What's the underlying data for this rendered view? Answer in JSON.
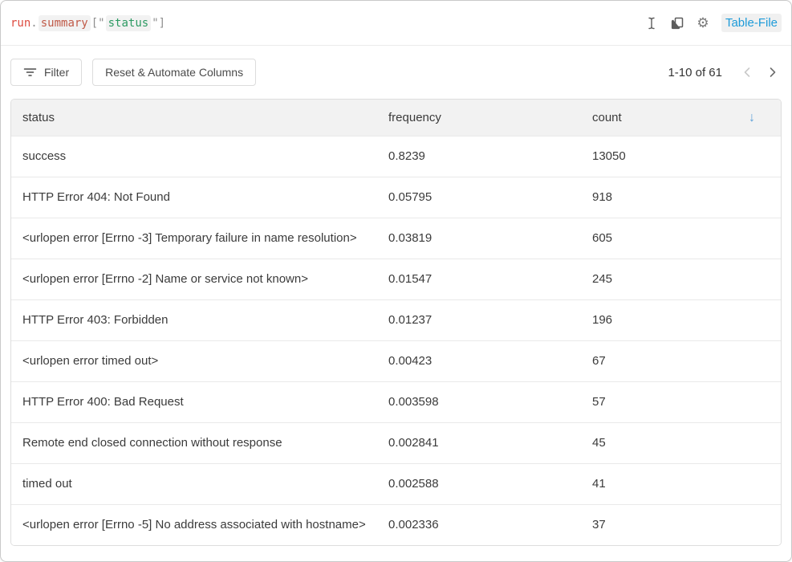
{
  "header": {
    "expression": {
      "tokens": [
        {
          "text": "run",
          "type": "keyword"
        },
        {
          "text": ".",
          "type": "punct"
        },
        {
          "text": "summary",
          "type": "property"
        },
        {
          "text": "[\"",
          "type": "punct"
        },
        {
          "text": "status",
          "type": "string"
        },
        {
          "text": "\"]",
          "type": "punct"
        }
      ]
    },
    "panel_type_label": "Table-File"
  },
  "toolbar": {
    "filter_label": "Filter",
    "reset_label": "Reset & Automate Columns",
    "pagination": {
      "range_label": "1-10 of 61"
    }
  },
  "table": {
    "columns": [
      "status",
      "frequency",
      "count"
    ],
    "sort": {
      "column": "count",
      "direction": "desc",
      "glyph": "↓"
    },
    "rows": [
      {
        "status": "success",
        "frequency": "0.8239",
        "count": "13050"
      },
      {
        "status": "HTTP Error 404: Not Found",
        "frequency": "0.05795",
        "count": "918"
      },
      {
        "status": "<urlopen error [Errno -3] Temporary failure in name resolution>",
        "frequency": "0.03819",
        "count": "605"
      },
      {
        "status": "<urlopen error [Errno -2] Name or service not known>",
        "frequency": "0.01547",
        "count": "245"
      },
      {
        "status": "HTTP Error 403: Forbidden",
        "frequency": "0.01237",
        "count": "196"
      },
      {
        "status": "<urlopen error timed out>",
        "frequency": "0.00423",
        "count": "67"
      },
      {
        "status": "HTTP Error 400: Bad Request",
        "frequency": "0.003598",
        "count": "57"
      },
      {
        "status": "Remote end closed connection without response",
        "frequency": "0.002841",
        "count": "45"
      },
      {
        "status": "timed out",
        "frequency": "0.002588",
        "count": "41"
      },
      {
        "status": "<urlopen error [Errno -5] No address associated with hostname>",
        "frequency": "0.002336",
        "count": "37"
      }
    ]
  },
  "colors": {
    "accent_blue": "#1d9bd9",
    "sort_arrow": "#5a9fd8",
    "code_keyword": "#dd4b40",
    "code_property": "#c05a48",
    "code_string": "#2d9a63",
    "header_bg": "#f2f2f2"
  }
}
